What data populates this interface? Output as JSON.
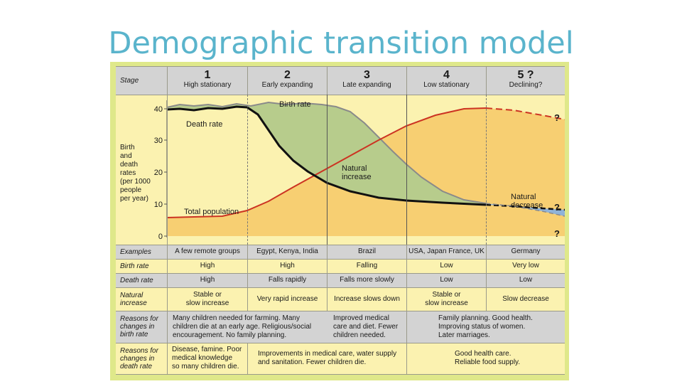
{
  "title": "Demographic transition model",
  "header": {
    "stage_label": "Stage",
    "stages": [
      {
        "num": "1",
        "name": "High stationary"
      },
      {
        "num": "2",
        "name": "Early expanding"
      },
      {
        "num": "3",
        "name": "Late expanding"
      },
      {
        "num": "4",
        "name": "Low stationary"
      },
      {
        "num": "5 ?",
        "name": "Declining?"
      }
    ]
  },
  "graph": {
    "ylabel": "Birth\nand\ndeath\nrates\n(per 1000\npeople\nper year)",
    "yticks": [
      "40",
      "30",
      "20",
      "10",
      "0"
    ],
    "labels": {
      "birth_rate": "Birth rate",
      "death_rate": "Death rate",
      "total_population": "Total population",
      "natural_increase": "Natural\nincrease",
      "natural_decrease": "Natural\ndecrease",
      "question_mark": "?"
    },
    "colors": {
      "birth_fill": "#b7cc8c",
      "population_fill": "#f7cf72",
      "decrease_fill": "#8fb3d9",
      "population_line": "#cc3322",
      "death_line": "#111111",
      "birth_line": "#8a8a8a"
    }
  },
  "rows": [
    {
      "label": "Examples",
      "cells": [
        "A few remote groups",
        "Egypt, Kenya, India",
        "Brazil",
        "USA, Japan France, UK",
        "Germany"
      ]
    },
    {
      "label": "Birth rate",
      "cells": [
        "High",
        "High",
        "Falling",
        "Low",
        "Very low"
      ]
    },
    {
      "label": "Death rate",
      "cells": [
        "High",
        "Falls rapidly",
        "Falls more slowly",
        "Low",
        "Low"
      ]
    },
    {
      "label": "Natural\nincrease",
      "cells": [
        "Stable or\nslow increase",
        "Very rapid increase",
        "Increase slows down",
        "Stable or\nslow increase",
        "Slow decrease"
      ]
    },
    {
      "label": "Reasons for\nchanges in\nbirth rate",
      "cells": [
        "Many children needed for farming. Many\nchildren die at an early age. Religious/social\nencouragement. No family planning.",
        "Improved medical\ncare and diet. Fewer\nchildren needed.",
        "Family planning. Good health.\nImproving status of women.\nLater marriages."
      ]
    },
    {
      "label": "Reasons for\nchanges in\ndeath rate",
      "cells": [
        "Disease, famine. Poor\nmedical knowledge\nso many children die.",
        "Improvements in medical care, water supply\nand sanitation. Fewer children die.",
        "Good health care.\nReliable food supply."
      ]
    }
  ]
}
